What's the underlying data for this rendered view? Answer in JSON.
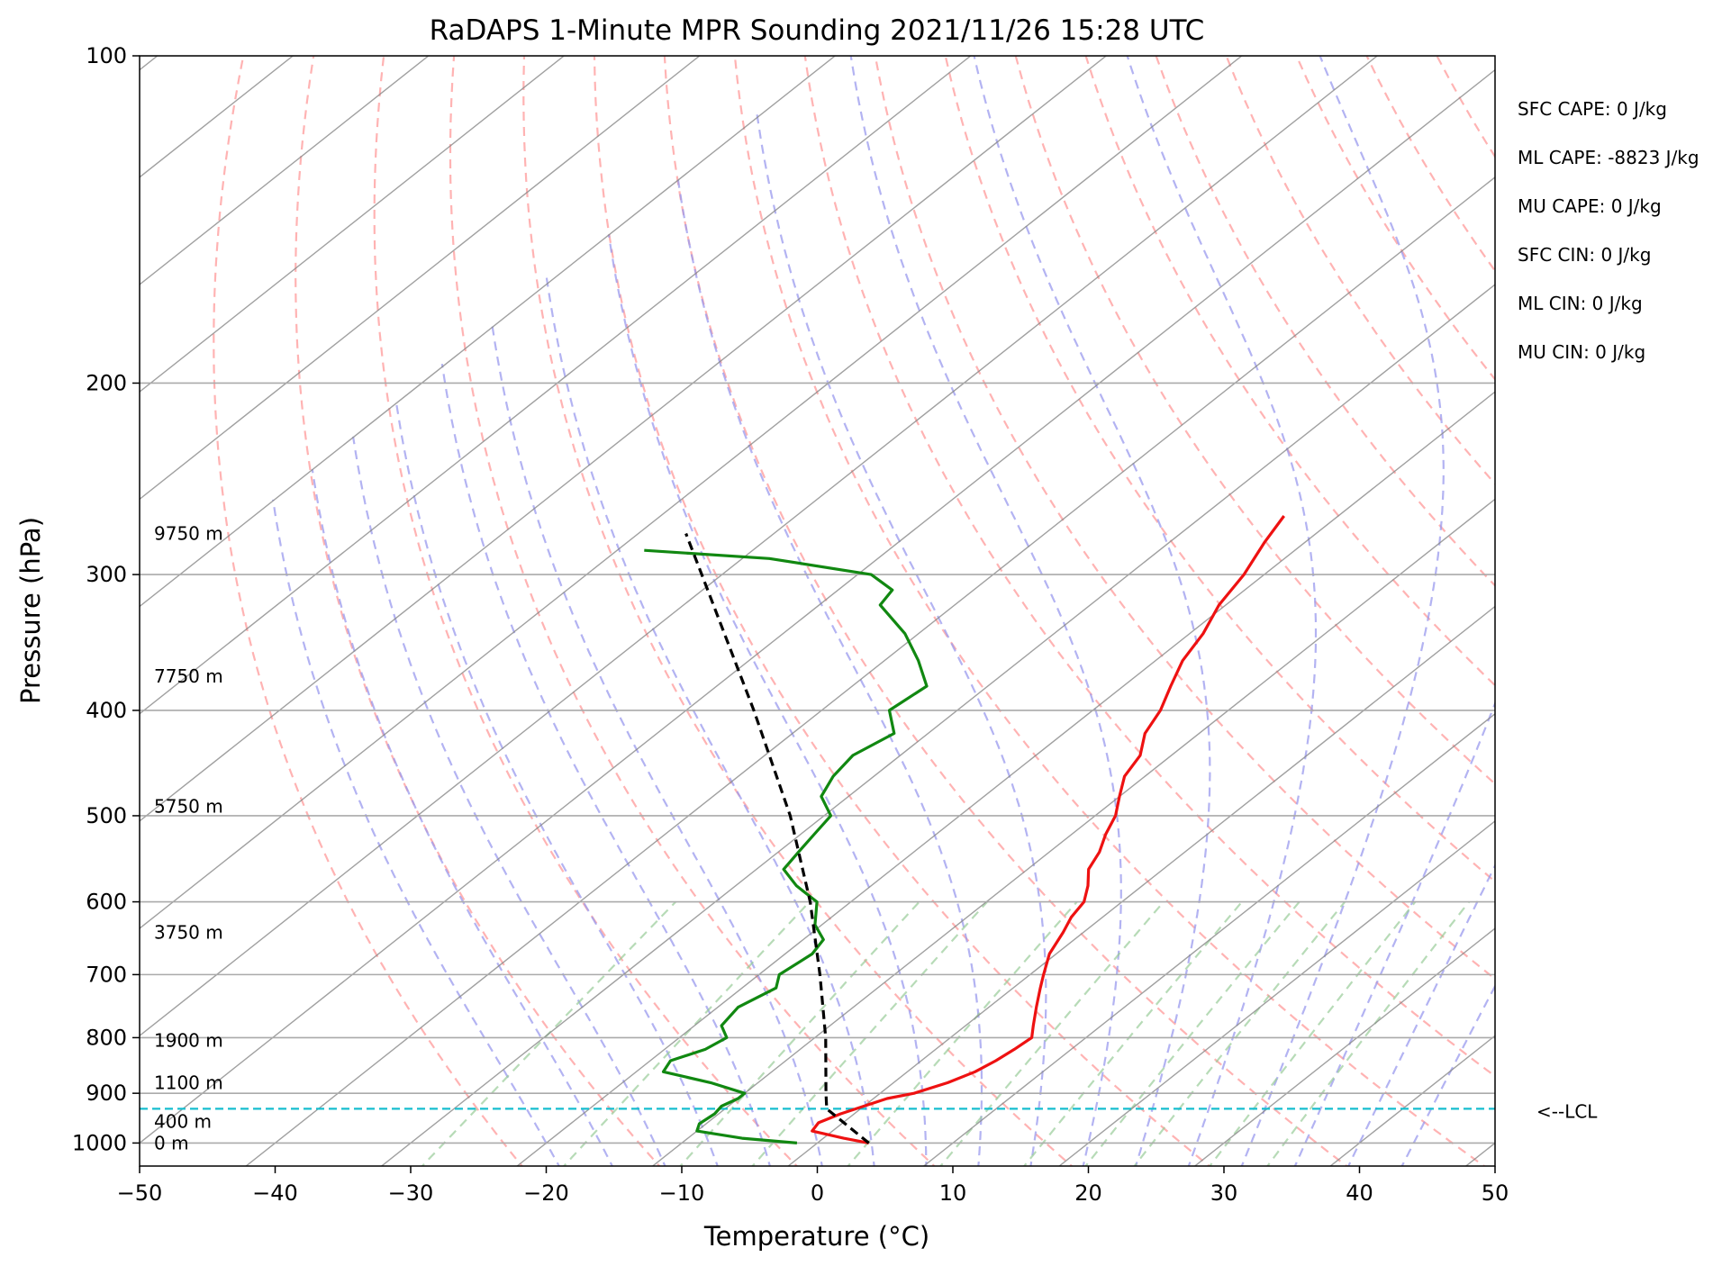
{
  "chart_data": {
    "type": "line",
    "title": "RaDAPS 1-Minute MPR Sounding 2021/11/26 15:28 UTC",
    "xlabel": "Temperature (°C)",
    "ylabel": "Pressure (hPa)",
    "xlim": [
      -50,
      50
    ],
    "ylim": [
      1050,
      100
    ],
    "y_scale": "log",
    "skew": true,
    "grid": true,
    "x_ticks": [
      -50,
      -40,
      -30,
      -20,
      -10,
      0,
      10,
      20,
      30,
      40,
      50
    ],
    "x_tick_labels": [
      "−50",
      "−40",
      "−30",
      "−20",
      "−10",
      "0",
      "10",
      "20",
      "30",
      "40",
      "50"
    ],
    "y_ticks": [
      1000,
      900,
      800,
      700,
      600,
      500,
      400,
      300,
      200,
      100
    ],
    "y_tick_labels": [
      "1000",
      "900",
      "800",
      "700",
      "600",
      "500",
      "400",
      "300",
      "200",
      "100"
    ],
    "series": [
      {
        "color": "#ee1111",
        "points": [
          [
            1000,
            3.8
          ],
          [
            990,
            1.5
          ],
          [
            975,
            -1.5
          ],
          [
            958,
            -1.8
          ],
          [
            940,
            -1.0
          ],
          [
            925,
            0.0
          ],
          [
            910,
            1.0
          ],
          [
            900,
            2.5
          ],
          [
            880,
            4.0
          ],
          [
            860,
            5.0
          ],
          [
            840,
            5.5
          ],
          [
            820,
            5.8
          ],
          [
            800,
            6.0
          ],
          [
            780,
            5.0
          ],
          [
            750,
            3.5
          ],
          [
            720,
            2.0
          ],
          [
            700,
            1.0
          ],
          [
            670,
            -0.5
          ],
          [
            640,
            -1.5
          ],
          [
            620,
            -2.3
          ],
          [
            600,
            -2.8
          ],
          [
            580,
            -4.0
          ],
          [
            560,
            -5.5
          ],
          [
            540,
            -6.3
          ],
          [
            520,
            -7.5
          ],
          [
            500,
            -8.5
          ],
          [
            480,
            -10.0
          ],
          [
            460,
            -11.5
          ],
          [
            440,
            -12.3
          ],
          [
            420,
            -14.0
          ],
          [
            400,
            -15.0
          ],
          [
            380,
            -16.5
          ],
          [
            360,
            -18.0
          ],
          [
            340,
            -19.0
          ],
          [
            320,
            -20.5
          ],
          [
            300,
            -21.5
          ],
          [
            280,
            -23.0
          ],
          [
            265,
            -24.0
          ]
        ]
      },
      {
        "color": "#118811",
        "points": [
          [
            1000,
            -1.5
          ],
          [
            990,
            -6.0
          ],
          [
            975,
            -10.0
          ],
          [
            960,
            -10.5
          ],
          [
            940,
            -10.3
          ],
          [
            925,
            -10.5
          ],
          [
            910,
            -10.0
          ],
          [
            900,
            -10.0
          ],
          [
            880,
            -13.5
          ],
          [
            860,
            -18.0
          ],
          [
            840,
            -18.5
          ],
          [
            820,
            -17.0
          ],
          [
            800,
            -16.5
          ],
          [
            780,
            -18.0
          ],
          [
            750,
            -18.5
          ],
          [
            720,
            -17.5
          ],
          [
            700,
            -18.5
          ],
          [
            670,
            -18.0
          ],
          [
            650,
            -18.5
          ],
          [
            630,
            -20.5
          ],
          [
            600,
            -22.5
          ],
          [
            580,
            -25.5
          ],
          [
            560,
            -28.0
          ],
          [
            540,
            -28.5
          ],
          [
            520,
            -29.0
          ],
          [
            500,
            -29.5
          ],
          [
            480,
            -32.0
          ],
          [
            460,
            -33.0
          ],
          [
            440,
            -33.5
          ],
          [
            420,
            -32.5
          ],
          [
            400,
            -35.0
          ],
          [
            380,
            -34.5
          ],
          [
            360,
            -37.5
          ],
          [
            340,
            -41.0
          ],
          [
            320,
            -45.5
          ],
          [
            310,
            -46.0
          ],
          [
            300,
            -49.0
          ],
          [
            290,
            -58.0
          ],
          [
            285,
            -68.0
          ]
        ]
      },
      {
        "color": "#000000",
        "dashed": true,
        "points": [
          [
            1000,
            3.8
          ],
          [
            930,
            -2.5
          ],
          [
            900,
            -4.0
          ],
          [
            800,
            -9.2
          ],
          [
            700,
            -15.5
          ],
          [
            600,
            -23.0
          ],
          [
            500,
            -32.5
          ],
          [
            400,
            -45.0
          ],
          [
            300,
            -61.5
          ],
          [
            275,
            -66.5
          ]
        ]
      }
    ],
    "height_labels": [
      {
        "text": "0 m",
        "p": 1000
      },
      {
        "text": "400 m",
        "p": 955
      },
      {
        "text": "1100 m",
        "p": 880
      },
      {
        "text": "1900 m",
        "p": 805
      },
      {
        "text": "3750 m",
        "p": 640
      },
      {
        "text": "5750 m",
        "p": 490
      },
      {
        "text": "7750 m",
        "p": 372
      },
      {
        "text": "9750 m",
        "p": 275
      }
    ],
    "lcl": {
      "p": 930,
      "label": "<--LCL",
      "color": "#17becf"
    },
    "stats": [
      "SFC CAPE: 0 J/kg",
      "ML CAPE: -8823 J/kg",
      "MU CAPE: 0 J/kg",
      "SFC CIN: 0 J/kg",
      "ML CIN: 0 J/kg",
      "MU CIN: 0 J/kg"
    ],
    "background_lines": {
      "isotherm_color": "#888888",
      "dry_adiabat_color": "#ff9999",
      "moist_adiabat_color": "#9999ee",
      "mixing_ratio_color": "#99cc99"
    }
  }
}
